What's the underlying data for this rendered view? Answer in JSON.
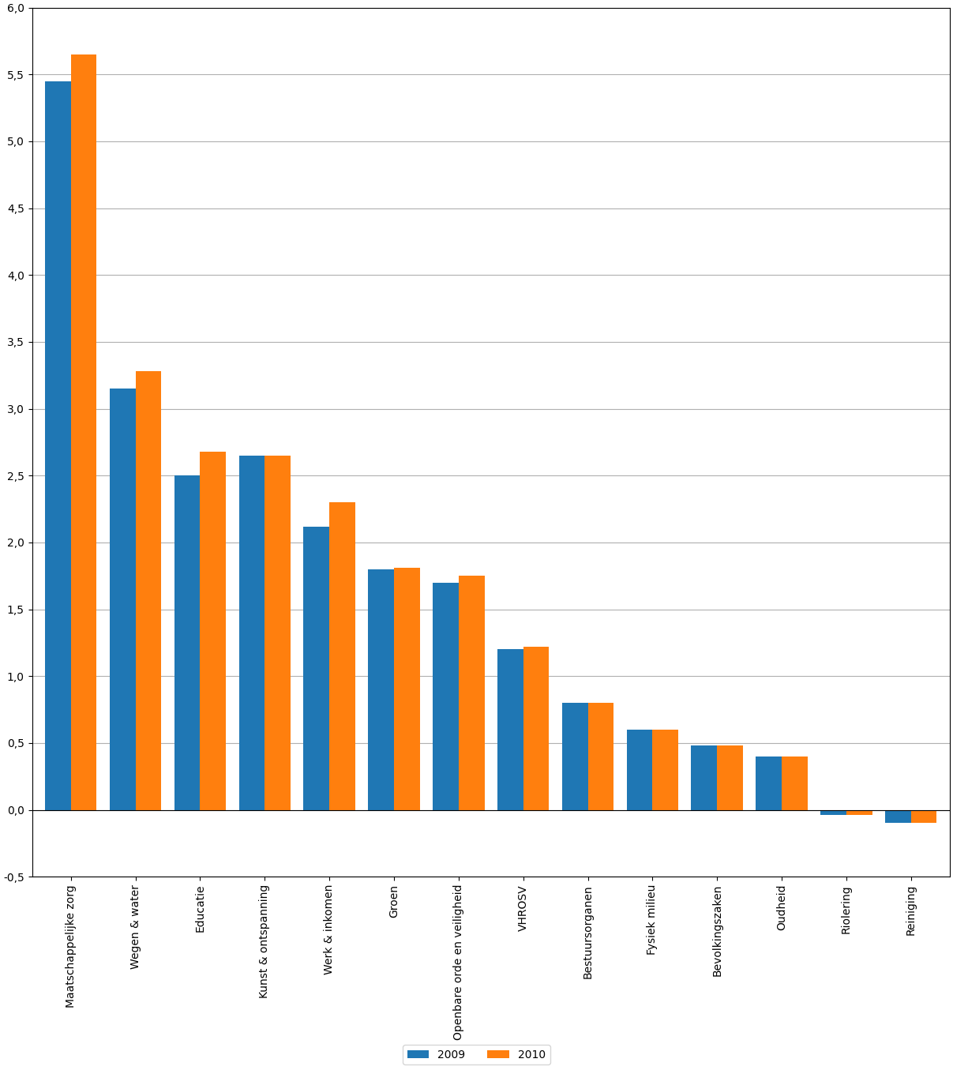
{
  "chart_data": {
    "type": "bar",
    "categories": [
      "Maatschappelijke zorg",
      "Wegen & water",
      "Educatie",
      "Kunst & ontspanning",
      "Werk & inkomen",
      "Groen",
      "Openbare orde en veiligheid",
      "VHROSV",
      "Bestuursorganen",
      "Fysiek milieu",
      "Bevolkingszaken",
      "Oudheid",
      "Riolering",
      "Reiniging"
    ],
    "series": [
      {
        "name": "2009",
        "values": [
          5.45,
          3.15,
          2.5,
          2.65,
          2.12,
          1.8,
          1.7,
          1.2,
          0.8,
          0.6,
          0.48,
          0.4,
          -0.04,
          -0.1
        ]
      },
      {
        "name": "2010",
        "values": [
          5.65,
          3.28,
          2.68,
          2.65,
          2.3,
          1.81,
          1.75,
          1.22,
          0.8,
          0.6,
          0.48,
          0.4,
          -0.04,
          -0.1
        ]
      }
    ],
    "ylim": [
      -0.5,
      6.0
    ],
    "yticks": [
      {
        "value": -0.5,
        "label": "-0,5"
      },
      {
        "value": 0.0,
        "label": "0,0"
      },
      {
        "value": 0.5,
        "label": "0,5"
      },
      {
        "value": 1.0,
        "label": "1,0"
      },
      {
        "value": 1.5,
        "label": "1,5"
      },
      {
        "value": 2.0,
        "label": "2,0"
      },
      {
        "value": 2.5,
        "label": "2,5"
      },
      {
        "value": 3.0,
        "label": "3,0"
      },
      {
        "value": 3.5,
        "label": "3,5"
      },
      {
        "value": 4.0,
        "label": "4,0"
      },
      {
        "value": 4.5,
        "label": "4,5"
      },
      {
        "value": 5.0,
        "label": "5,0"
      },
      {
        "value": 5.5,
        "label": "5,5"
      },
      {
        "value": 6.0,
        "label": "6,0"
      }
    ],
    "grid": true,
    "legend": "lower center"
  }
}
